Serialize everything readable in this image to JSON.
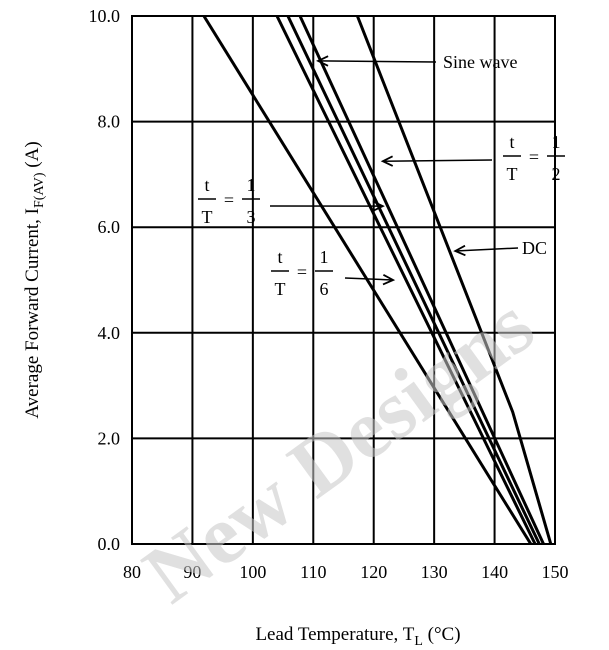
{
  "chart_data": {
    "type": "line",
    "xlabel": "Lead Temperature, T",
    "xlabel_sub": "L",
    "xlabel_unit": " (°C)",
    "ylabel": "Average Forward Current, I",
    "ylabel_sub": "F(AV)",
    "ylabel_unit": " (A)",
    "xlim": [
      80,
      150
    ],
    "ylim": [
      0,
      10
    ],
    "x_ticks": [
      "80",
      "90",
      "100",
      "110",
      "120",
      "130",
      "140",
      "150"
    ],
    "y_ticks": [
      "0.0",
      "2.0",
      "4.0",
      "6.0",
      "8.0",
      "10.0"
    ],
    "grid": true,
    "series": [
      {
        "x": [
          91.9,
          146.0
        ],
        "y": [
          10.0,
          0.0
        ]
      },
      {
        "x": [
          104.0,
          146.7
        ],
        "y": [
          10.0,
          0.0
        ]
      },
      {
        "x": [
          105.8,
          147.4
        ],
        "y": [
          10.0,
          0.0
        ]
      },
      {
        "x": [
          107.8,
          148.1
        ],
        "y": [
          10.0,
          0.0
        ]
      },
      {
        "x": [
          117.3,
          143.0,
          149.3
        ],
        "y": [
          10.0,
          2.5,
          0.0
        ]
      }
    ],
    "annotations": [
      {
        "text": "Sine wave",
        "arrow_to": [
          110.8,
          9.15
        ]
      },
      {
        "num": "t",
        "den": "T",
        "eq": "=",
        "rnum": "1",
        "rden": "2",
        "arrow_to": [
          121.5,
          7.25
        ]
      },
      {
        "num": "t",
        "den": "T",
        "eq": "=",
        "rnum": "1",
        "rden": "3",
        "arrow_to": [
          121.5,
          6.4
        ]
      },
      {
        "text": "DC",
        "arrow_to": [
          133.5,
          5.55
        ]
      },
      {
        "num": "t",
        "den": "T",
        "eq": "=",
        "rnum": "1",
        "rden": "6",
        "arrow_to": [
          123.2,
          5.0
        ]
      }
    ]
  },
  "watermark": "New Designs"
}
